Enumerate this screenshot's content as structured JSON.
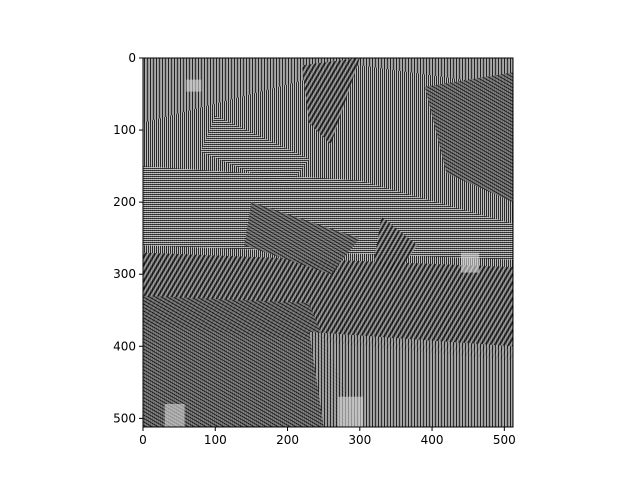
{
  "chart_data": {
    "type": "heatmap",
    "title": "",
    "xlabel": "",
    "ylabel": "",
    "image_size": [
      512,
      512
    ],
    "colormap": "gray",
    "xlim": [
      0,
      512
    ],
    "ylim": [
      512,
      0
    ],
    "x_ticks": [
      0,
      100,
      200,
      300,
      400,
      500
    ],
    "y_ticks": [
      0,
      100,
      200,
      300,
      400,
      500
    ],
    "x_tick_labels": [
      "0",
      "100",
      "200",
      "300",
      "400",
      "500"
    ],
    "y_tick_labels": [
      "0",
      "100",
      "200",
      "300",
      "400",
      "500"
    ],
    "grid": false,
    "legend": "none",
    "colors": {
      "background": "#ffffff",
      "axes": "#000000",
      "mid_gray": "#8a8a8a"
    }
  }
}
